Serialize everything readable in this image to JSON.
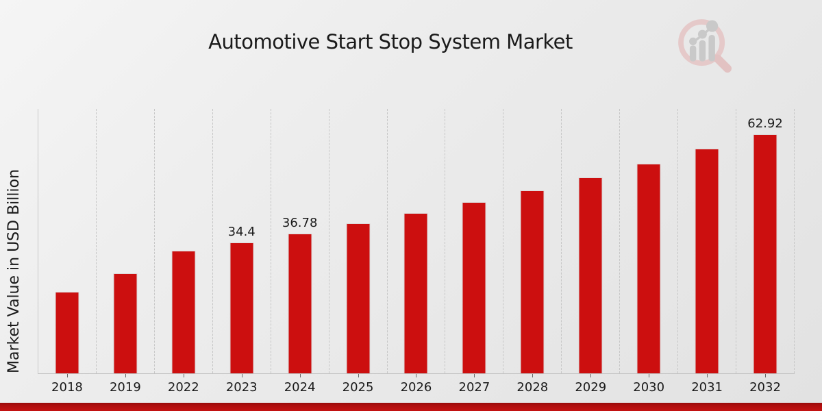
{
  "chart": {
    "title": "Automotive Start Stop System Market",
    "ylabel": "Market Value in USD Billion"
  },
  "colors": {
    "bar": "#cc0f0f",
    "bar_border": "#ddd9d9",
    "grid": "#c6c6c6",
    "axis": "#c9c9c9",
    "text": "#1a1a1a",
    "bottom_strip": "#c41212",
    "logo_ring": "#e5c9c9",
    "logo_gray": "#c9c9c9"
  },
  "chart_data": {
    "type": "bar",
    "title": "Automotive Start Stop System Market",
    "xlabel": "",
    "ylabel": "Market Value in USD Billion",
    "categories": [
      "2018",
      "2019",
      "2022",
      "2023",
      "2024",
      "2025",
      "2026",
      "2027",
      "2028",
      "2029",
      "2030",
      "2031",
      "2032"
    ],
    "values": [
      21.5,
      26.4,
      32.2,
      34.4,
      36.78,
      39.4,
      42.2,
      45.1,
      48.2,
      51.6,
      55.2,
      59.1,
      62.92
    ],
    "data_labels": {
      "2023": "34.4",
      "2024": "36.78",
      "2032": "62.92"
    },
    "ylim": [
      0,
      69.6
    ],
    "grid": "vertical-dashed-between-categories",
    "legend": "none",
    "bar_color": "#cc0f0f"
  }
}
